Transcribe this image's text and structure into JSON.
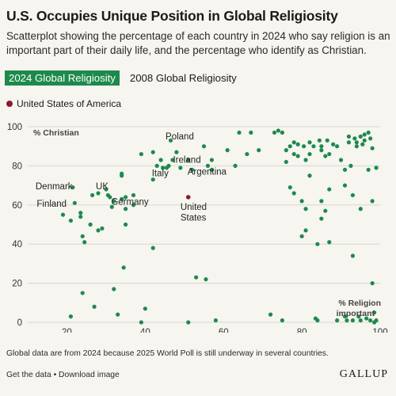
{
  "header": {
    "title": "U.S. Occupies Unique Position in Global Religiosity",
    "subtitle": "Scatterplot showing the percentage of each country in 2024 who say religion is an important part of their daily life, and the percentage who identify as Christian."
  },
  "tabs": [
    {
      "label": "2024 Global Religiosity",
      "active": true
    },
    {
      "label": "2008 Global Religiosity",
      "active": false
    }
  ],
  "legend": {
    "label": "United States of America",
    "color": "#8c1a2e"
  },
  "chart_data": {
    "type": "scatter",
    "xlabel": "% Religion important",
    "ylabel": "% Christian",
    "xlim": [
      10,
      100
    ],
    "ylim": [
      0,
      100
    ],
    "xticks": [
      20,
      40,
      60,
      80,
      100
    ],
    "yticks": [
      0,
      20,
      40,
      60,
      80,
      100
    ],
    "grid": "horizontal",
    "point_color": "#1d8a4c",
    "highlight_color": "#8c1a2e",
    "points": [
      [
        19,
        55
      ],
      [
        21,
        3
      ],
      [
        21,
        52
      ],
      [
        21.5,
        69
      ],
      [
        22,
        61
      ],
      [
        23.5,
        54
      ],
      [
        23.5,
        56
      ],
      [
        24,
        44
      ],
      [
        24,
        15
      ],
      [
        24.5,
        41
      ],
      [
        26,
        50
      ],
      [
        26.5,
        65
      ],
      [
        27,
        8
      ],
      [
        28,
        66
      ],
      [
        28,
        47
      ],
      [
        29,
        48
      ],
      [
        30,
        68
      ],
      [
        30.5,
        65
      ],
      [
        31,
        64
      ],
      [
        31.5,
        59
      ],
      [
        32,
        17
      ],
      [
        32,
        62
      ],
      [
        33,
        4
      ],
      [
        34,
        63
      ],
      [
        34,
        75
      ],
      [
        34,
        76
      ],
      [
        34.5,
        28
      ],
      [
        35,
        50
      ],
      [
        35,
        64
      ],
      [
        35,
        58
      ],
      [
        37,
        60
      ],
      [
        37,
        65
      ],
      [
        39,
        0
      ],
      [
        39,
        86
      ],
      [
        40,
        7
      ],
      [
        42,
        87
      ],
      [
        42,
        73
      ],
      [
        42,
        38
      ],
      [
        43,
        80
      ],
      [
        44,
        83
      ],
      [
        44.5,
        79
      ],
      [
        45.5,
        79
      ],
      [
        46,
        80
      ],
      [
        46.5,
        93
      ],
      [
        47,
        83
      ],
      [
        48,
        87
      ],
      [
        49,
        79
      ],
      [
        51,
        83
      ],
      [
        51,
        0
      ],
      [
        52,
        78
      ],
      [
        53,
        23
      ],
      [
        55,
        90
      ],
      [
        55.5,
        22
      ],
      [
        56,
        80
      ],
      [
        57,
        83
      ],
      [
        57,
        78
      ],
      [
        58,
        1
      ],
      [
        61,
        88
      ],
      [
        63,
        80
      ],
      [
        64,
        97
      ],
      [
        66,
        86
      ],
      [
        67,
        97
      ],
      [
        69,
        88
      ],
      [
        72,
        4
      ],
      [
        73,
        97
      ],
      [
        74,
        98
      ],
      [
        75,
        97
      ],
      [
        75,
        1
      ],
      [
        76,
        88
      ],
      [
        76,
        82
      ],
      [
        77,
        90
      ],
      [
        77,
        69
      ],
      [
        78,
        86
      ],
      [
        78,
        92
      ],
      [
        78,
        66
      ],
      [
        79,
        85
      ],
      [
        79,
        91
      ],
      [
        80,
        44
      ],
      [
        80,
        62
      ],
      [
        80.5,
        90
      ],
      [
        81,
        58
      ],
      [
        81,
        47
      ],
      [
        81,
        83
      ],
      [
        82,
        92
      ],
      [
        82,
        75
      ],
      [
        82,
        86
      ],
      [
        83,
        90
      ],
      [
        83.5,
        2
      ],
      [
        84,
        40
      ],
      [
        84,
        1
      ],
      [
        84.5,
        93
      ],
      [
        85,
        88
      ],
      [
        85,
        62
      ],
      [
        85,
        53
      ],
      [
        85,
        90
      ],
      [
        86,
        57
      ],
      [
        86,
        85
      ],
      [
        86.5,
        93
      ],
      [
        87,
        41
      ],
      [
        87,
        86
      ],
      [
        87,
        68
      ],
      [
        88,
        91
      ],
      [
        89,
        90
      ],
      [
        89,
        1
      ],
      [
        90,
        83
      ],
      [
        91,
        78
      ],
      [
        91,
        70
      ],
      [
        91,
        3
      ],
      [
        91.5,
        1
      ],
      [
        92,
        92
      ],
      [
        92,
        95
      ],
      [
        92.5,
        80
      ],
      [
        93,
        65
      ],
      [
        93,
        34
      ],
      [
        93,
        1
      ],
      [
        93.5,
        94
      ],
      [
        94,
        90
      ],
      [
        94,
        92
      ],
      [
        94.5,
        3
      ],
      [
        95,
        95
      ],
      [
        95,
        58
      ],
      [
        95,
        1
      ],
      [
        95.5,
        91
      ],
      [
        96,
        96
      ],
      [
        96,
        93
      ],
      [
        96.5,
        2
      ],
      [
        97,
        97
      ],
      [
        97,
        78
      ],
      [
        97.5,
        94
      ],
      [
        97.5,
        1
      ],
      [
        98,
        89
      ],
      [
        98,
        62
      ],
      [
        98,
        20
      ],
      [
        98.5,
        5
      ],
      [
        98.5,
        0
      ],
      [
        99,
        79
      ],
      [
        99,
        1
      ]
    ],
    "highlight": {
      "x": 51,
      "y": 64,
      "name": "United States"
    },
    "annotations": [
      {
        "text": "Poland",
        "x": 45.2,
        "y": 93.5
      },
      {
        "text": "Ireland",
        "x": 47.1,
        "y": 81.6
      },
      {
        "text": "Italy",
        "x": 41.7,
        "y": 74.6
      },
      {
        "text": "Argentina",
        "x": 50.8,
        "y": 75.6
      },
      {
        "text": "Denmark",
        "x": 12,
        "y": 68
      },
      {
        "text": "UK",
        "x": 27.4,
        "y": 68
      },
      {
        "text": "Finland",
        "x": 12.3,
        "y": 59.2
      },
      {
        "text": "Germany",
        "x": 31.3,
        "y": 60.1
      },
      {
        "text": "United",
        "x": 49,
        "y": 57.5
      },
      {
        "text": "States",
        "x": 49,
        "y": 52
      }
    ]
  },
  "footer": {
    "note": "Global data are from 2024 because 2025 World Poll is still underway in several countries.",
    "link_data": "Get the data",
    "separator": "•",
    "link_image": "Download image",
    "brand": "GALLUP"
  }
}
